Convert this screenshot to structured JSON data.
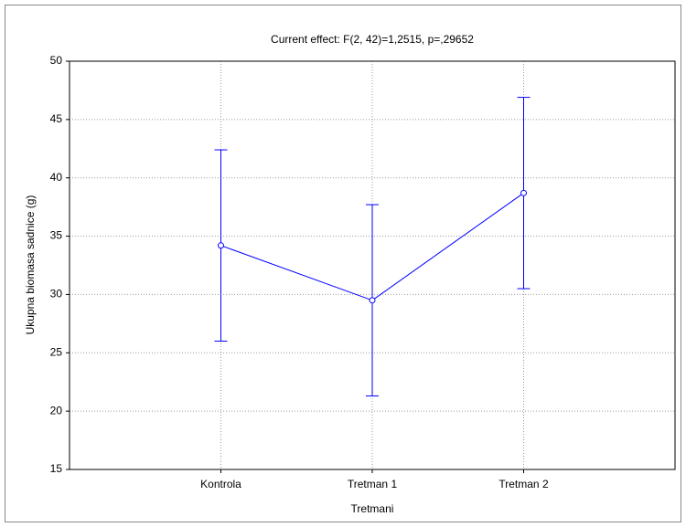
{
  "chart_data": {
    "type": "line",
    "title": "Current effect: F(2, 42)=1,2515, p=,29652",
    "x_label": "Tretmani",
    "y_label": "Ukupna biomasa sadnice (g)",
    "categories": [
      "Kontrola",
      "Tretman 1",
      "Tretman 2"
    ],
    "series": [
      {
        "name": "Ukupna biomasa sadnice (g)",
        "color": "#0000ff",
        "values": [
          34.2,
          29.5,
          38.7
        ],
        "errors": [
          8.2,
          8.2,
          8.2
        ]
      }
    ],
    "ylim": [
      15,
      50
    ],
    "yticks": [
      15,
      20,
      25,
      30,
      35,
      40,
      45,
      50
    ],
    "grid": true
  }
}
